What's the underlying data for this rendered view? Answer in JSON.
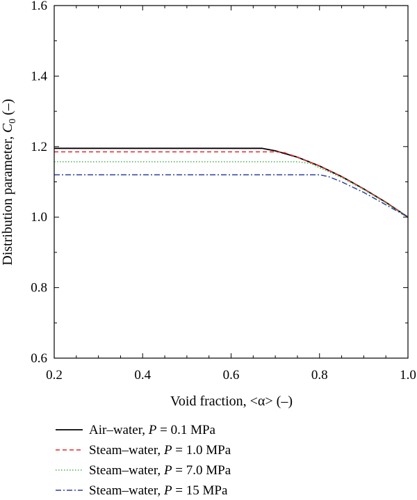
{
  "chart_data": {
    "type": "line",
    "title": "",
    "xlabel": "Void fraction, <α> (–)",
    "ylabel": "Distribution parameter, C0 (–)",
    "xlim": [
      0.2,
      1.0
    ],
    "ylim": [
      0.6,
      1.6
    ],
    "xticks": [
      0.2,
      0.4,
      0.6,
      0.8,
      1.0
    ],
    "yticks": [
      0.6,
      0.8,
      1.0,
      1.2,
      1.4,
      1.6
    ],
    "xtick_labels": [
      "0.2",
      "0.4",
      "0.6",
      "0.8",
      "1.0"
    ],
    "ytick_labels": [
      "0.6",
      "0.8",
      "1.0",
      "1.2",
      "1.4",
      "1.6"
    ],
    "grid": false,
    "legend_position": "below",
    "series": [
      {
        "name": "Air–water, P = 0.1 MPa",
        "label_parts": [
          "Air–water, ",
          "P",
          " = 0.1 MPa"
        ],
        "color": "#000000",
        "dash": "solid",
        "x": [
          0.2,
          0.3,
          0.4,
          0.5,
          0.6,
          0.67,
          0.7,
          0.75,
          0.8,
          0.85,
          0.9,
          0.95,
          1.0
        ],
        "y": [
          1.195,
          1.195,
          1.195,
          1.195,
          1.195,
          1.195,
          1.188,
          1.17,
          1.145,
          1.115,
          1.08,
          1.042,
          1.0
        ]
      },
      {
        "name": "Steam–water, P = 1.0 MPa",
        "label_parts": [
          "Steam–water, ",
          "P",
          " = 1.0 MPa"
        ],
        "color": "#e8262a",
        "dash": "dashed",
        "x": [
          0.2,
          0.3,
          0.4,
          0.5,
          0.6,
          0.7,
          0.72,
          0.75,
          0.8,
          0.85,
          0.9,
          0.95,
          1.0
        ],
        "y": [
          1.185,
          1.185,
          1.185,
          1.185,
          1.185,
          1.185,
          1.183,
          1.17,
          1.145,
          1.115,
          1.08,
          1.042,
          1.0
        ]
      },
      {
        "name": "Steam–water, P = 7.0 MPa",
        "label_parts": [
          "Steam–water, ",
          "P",
          " = 7.0 MPa"
        ],
        "color": "#3cb44b",
        "dash": "dotted",
        "x": [
          0.2,
          0.3,
          0.4,
          0.5,
          0.6,
          0.7,
          0.75,
          0.78,
          0.8,
          0.85,
          0.9,
          0.95,
          1.0
        ],
        "y": [
          1.157,
          1.157,
          1.157,
          1.157,
          1.157,
          1.157,
          1.157,
          1.152,
          1.14,
          1.112,
          1.078,
          1.04,
          1.0
        ]
      },
      {
        "name": "Steam–water, P = 15 MPa",
        "label_parts": [
          "Steam–water, ",
          "P",
          " = 15 MPa"
        ],
        "color": "#2b3f9e",
        "dash": "dashdot",
        "x": [
          0.2,
          0.3,
          0.4,
          0.5,
          0.6,
          0.7,
          0.8,
          0.82,
          0.85,
          0.9,
          0.95,
          1.0
        ],
        "y": [
          1.12,
          1.12,
          1.12,
          1.12,
          1.12,
          1.12,
          1.12,
          1.115,
          1.1,
          1.07,
          1.035,
          1.0
        ]
      }
    ]
  }
}
